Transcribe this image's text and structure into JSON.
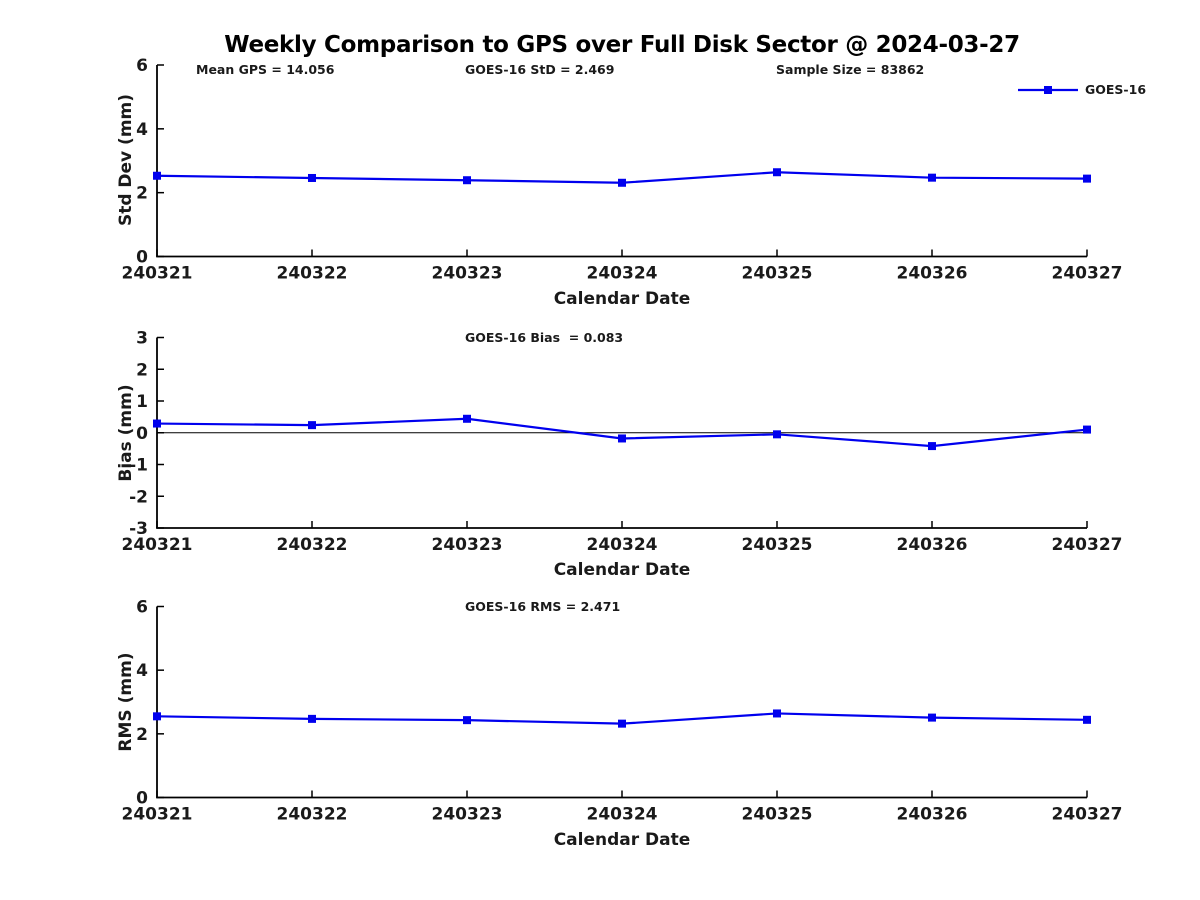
{
  "title": "Weekly Comparison to GPS over Full Disk Sector @ 2024-03-27",
  "annotations": {
    "mean_gps": "Mean GPS = 14.056",
    "std": "GOES-16 StD = 2.469",
    "sample_size": "Sample Size = 83862",
    "bias": "GOES-16 Bias  = 0.083",
    "rms": "GOES-16 RMS = 2.471"
  },
  "legend": {
    "label": "GOES-16"
  },
  "colors": {
    "series": "#0000EE",
    "axis": "#000000",
    "text": "#1a1a1a"
  },
  "chart_data": [
    {
      "type": "line",
      "categories": [
        "240321",
        "240322",
        "240323",
        "240324",
        "240325",
        "240326",
        "240327"
      ],
      "series": [
        {
          "name": "GOES-16",
          "values": [
            2.53,
            2.46,
            2.39,
            2.31,
            2.64,
            2.47,
            2.44
          ]
        }
      ],
      "ylabel": "Std Dev (mm)",
      "xlabel": "Calendar Date",
      "ylim": [
        0,
        6
      ],
      "yticks": [
        0,
        2,
        4,
        6
      ],
      "grid": false,
      "legend_position": "top-right",
      "zero_line": false
    },
    {
      "type": "line",
      "categories": [
        "240321",
        "240322",
        "240323",
        "240324",
        "240325",
        "240326",
        "240327"
      ],
      "series": [
        {
          "name": "GOES-16",
          "values": [
            0.29,
            0.24,
            0.44,
            -0.18,
            -0.05,
            -0.42,
            0.1
          ]
        }
      ],
      "ylabel": "Bias (mm)",
      "xlabel": "Calendar Date",
      "ylim": [
        -3,
        3
      ],
      "yticks": [
        3,
        2,
        1,
        0,
        -1,
        -2,
        -3
      ],
      "grid": false,
      "legend_position": "none",
      "zero_line": true
    },
    {
      "type": "line",
      "categories": [
        "240321",
        "240322",
        "240323",
        "240324",
        "240325",
        "240326",
        "240327"
      ],
      "series": [
        {
          "name": "GOES-16",
          "values": [
            2.55,
            2.47,
            2.43,
            2.32,
            2.64,
            2.51,
            2.44
          ]
        }
      ],
      "ylabel": "RMS (mm)",
      "xlabel": "Calendar Date",
      "ylim": [
        0,
        6
      ],
      "yticks": [
        0,
        2,
        4,
        6
      ],
      "grid": false,
      "legend_position": "none",
      "zero_line": false
    }
  ]
}
